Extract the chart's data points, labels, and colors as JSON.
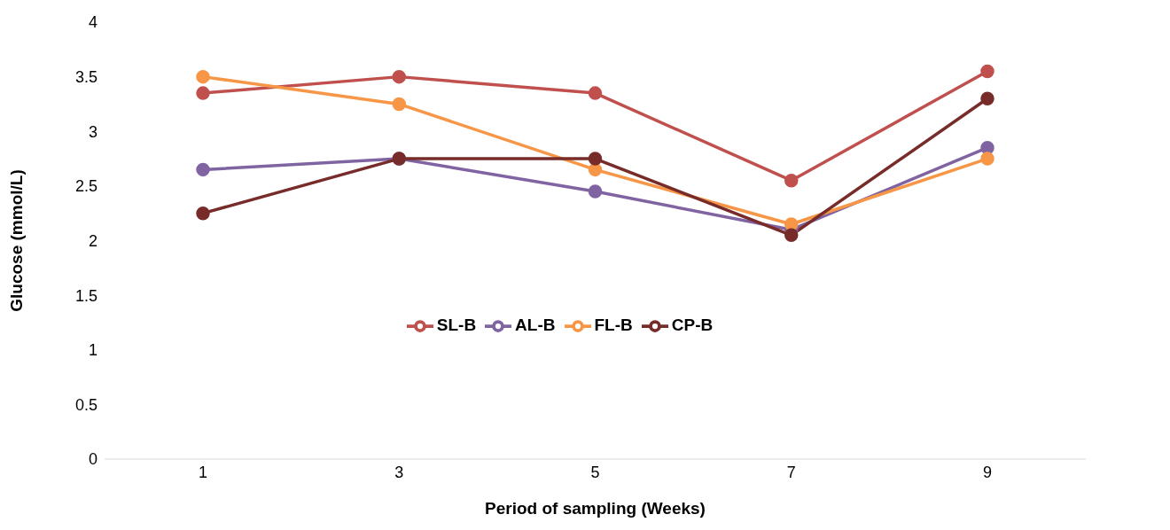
{
  "chart_data": {
    "type": "line",
    "xlabel": "Period of sampling (Weeks)",
    "ylabel": "Glucose (mmol/L)",
    "categories": [
      "1",
      "3",
      "5",
      "7",
      "9"
    ],
    "series": [
      {
        "name": "SL-B",
        "color": "#c0504d",
        "values": [
          3.35,
          3.5,
          3.35,
          2.55,
          3.55
        ]
      },
      {
        "name": "AL-B",
        "color": "#8064a2",
        "values": [
          2.65,
          2.75,
          2.45,
          2.1,
          2.85
        ]
      },
      {
        "name": "FL-B",
        "color": "#f79646",
        "values": [
          3.5,
          3.25,
          2.65,
          2.15,
          2.75
        ]
      },
      {
        "name": "CP-B",
        "color": "#772c2a",
        "values": [
          2.25,
          2.75,
          2.75,
          2.05,
          3.3
        ]
      }
    ],
    "ylim": [
      0,
      4
    ],
    "yticks": [
      0,
      0.5,
      1,
      1.5,
      2,
      2.5,
      3,
      3.5,
      4
    ],
    "grid": false,
    "legend": "center",
    "marker": "circle",
    "line_style": "solid"
  }
}
